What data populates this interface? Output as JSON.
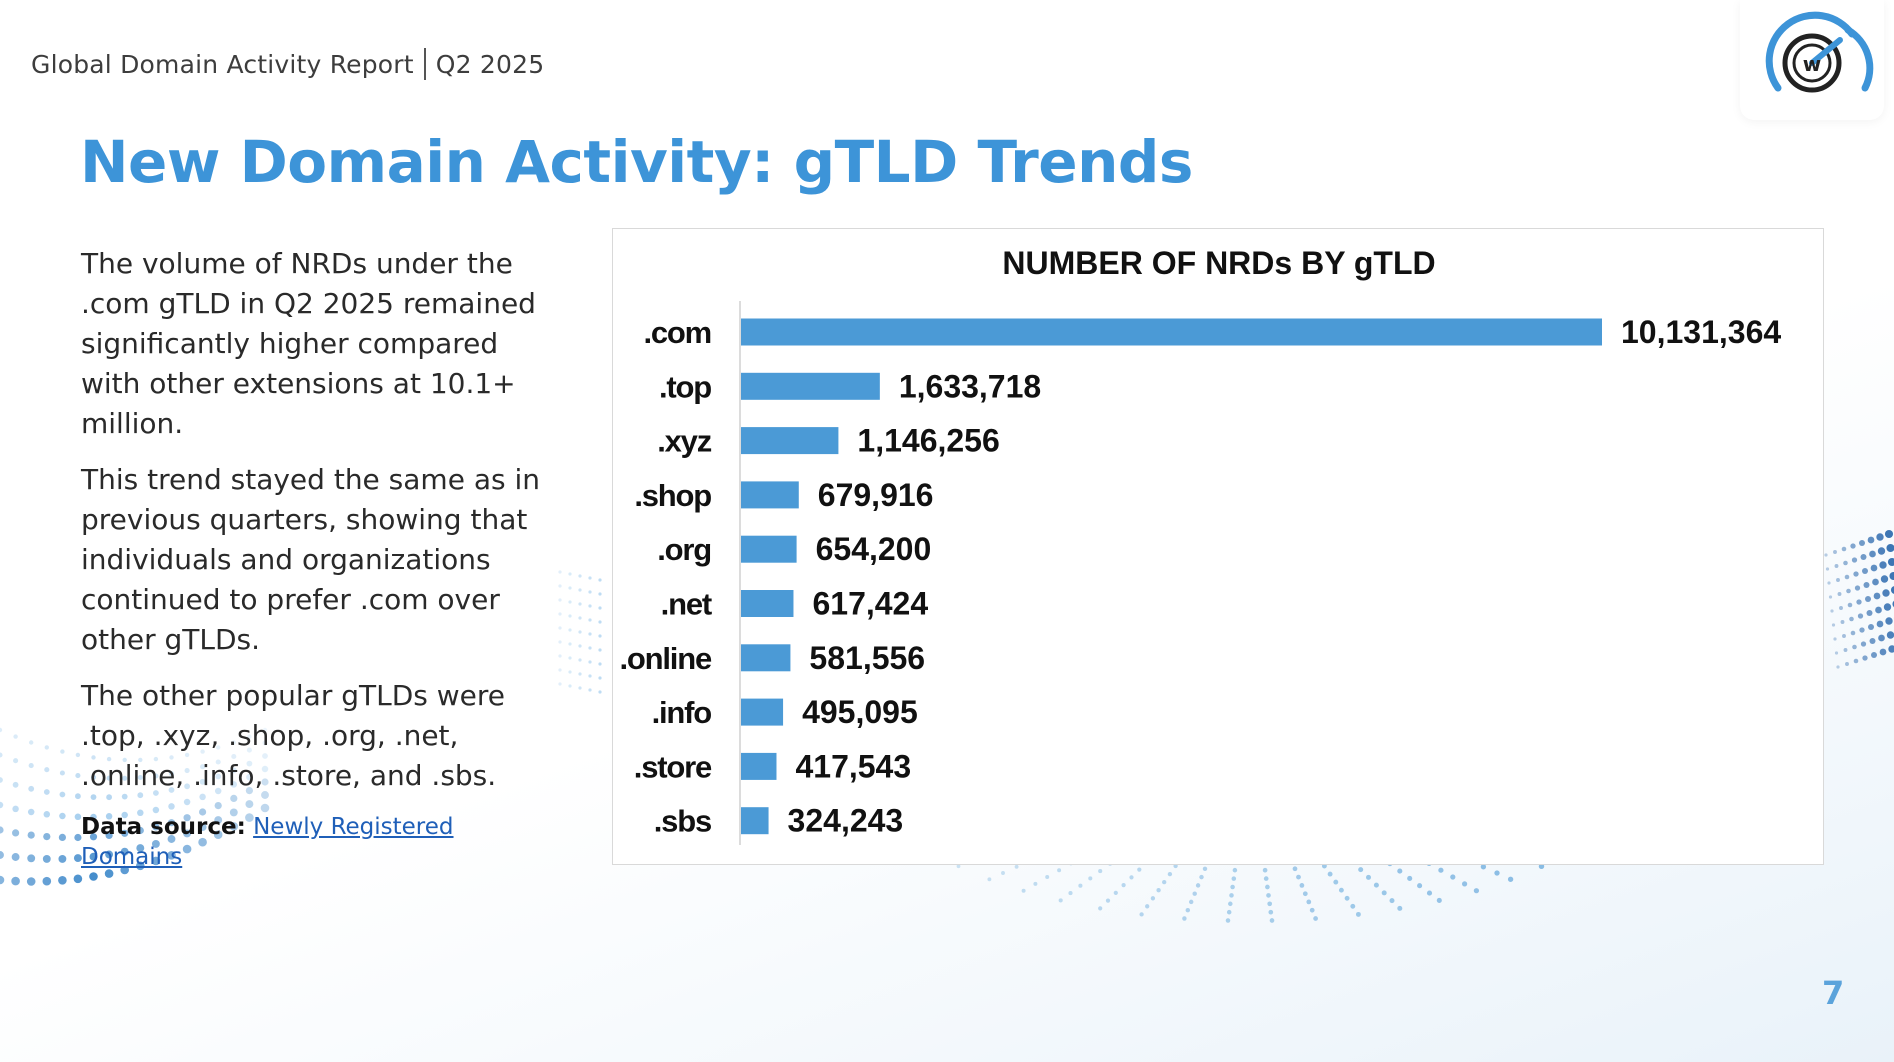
{
  "header": {
    "report_name": "Global Domain Activity Report",
    "period": "Q2 2025"
  },
  "logo": {
    "letter": "w"
  },
  "page_title": "New Domain Activity: gTLD Trends",
  "body": {
    "paragraphs": [
      "The volume of NRDs under the .com gTLD in Q2 2025 remained significantly higher compared with other extensions at 10.1+ million.",
      "This trend stayed the same as in previous quarters, showing that individuals and organizations continued to prefer .com over other gTLDs.",
      "The other popular gTLDs were .top, .xyz, .shop, .org, .net, .online, .info, .store, and .sbs."
    ],
    "source_label": "Data source:",
    "source_link": "Newly Registered Domains"
  },
  "chart_data": {
    "type": "bar",
    "orientation": "horizontal",
    "title": "NUMBER OF NRDs BY gTLD",
    "categories": [
      ".com",
      ".top",
      ".xyz",
      ".shop",
      ".org",
      ".net",
      ".online",
      ".info",
      ".store",
      ".sbs"
    ],
    "values": [
      10131364,
      1633718,
      1146256,
      679916,
      654200,
      617424,
      581556,
      495095,
      417543,
      324243
    ],
    "value_labels": [
      "10,131,364",
      "1,633,718",
      "1,146,256",
      "679,916",
      "654,200",
      "617,424",
      "581,556",
      "495,095",
      "417,543",
      "324,243"
    ],
    "xlabel": "",
    "ylabel": "",
    "xlim": [
      0,
      10131364
    ],
    "grid": false,
    "bar_color": "#4b9ad6"
  },
  "page_number": "7",
  "colors": {
    "title": "#3d94d8",
    "link": "#1f5fb8",
    "page_number": "#5ba3db"
  }
}
